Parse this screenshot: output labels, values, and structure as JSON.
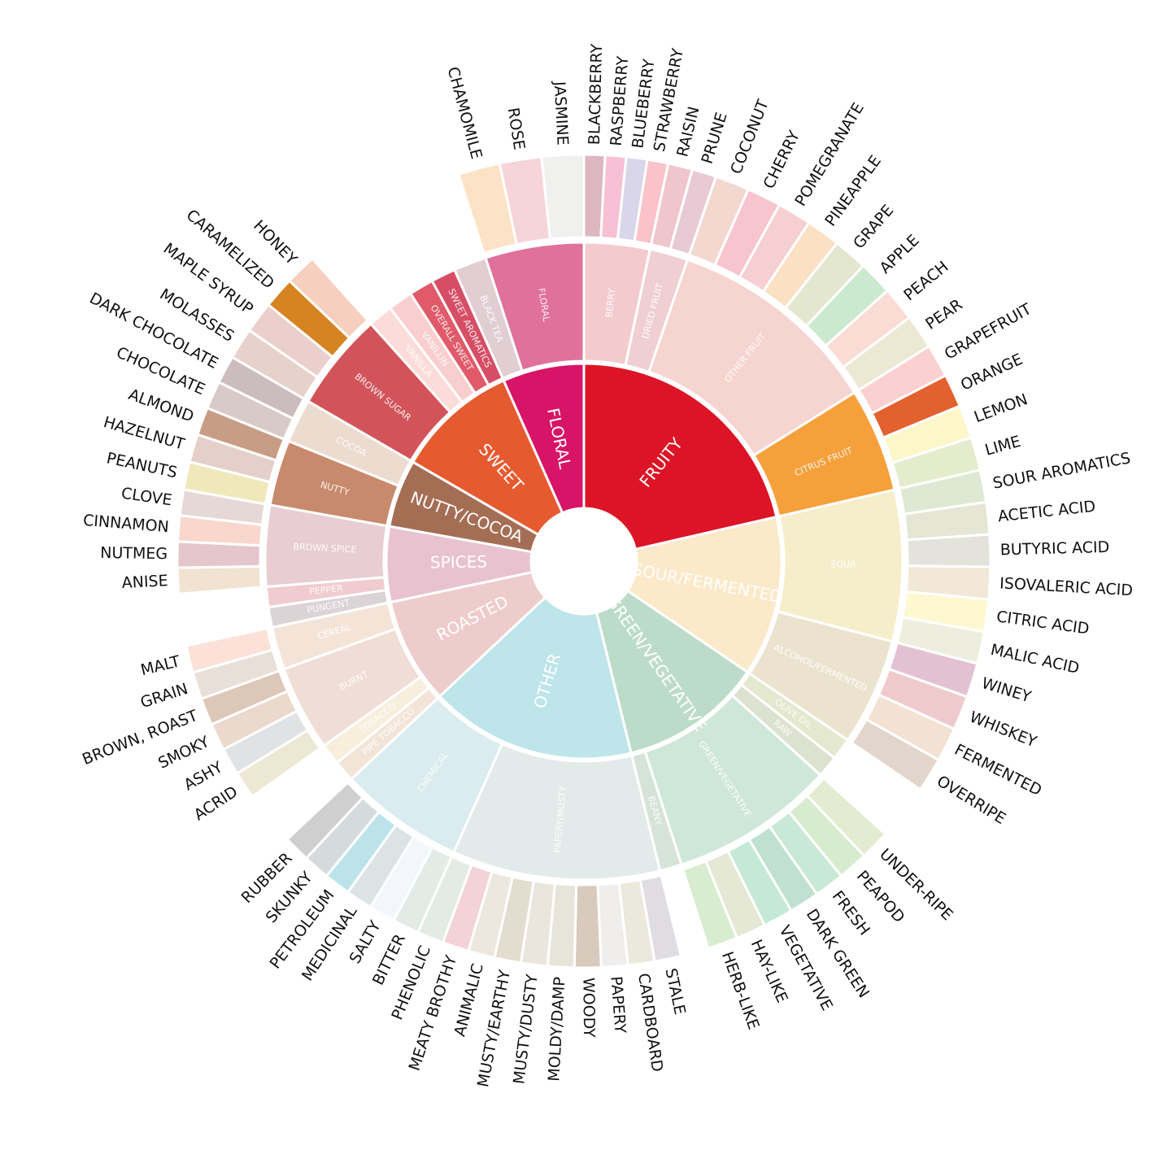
{
  "chart_data": {
    "type": "sunburst",
    "children": [
      {
        "name": "FRUITY",
        "color": "#dc1426",
        "children": [
          {
            "name": "BERRY",
            "color": "#f3cbcf",
            "children": [
              {
                "name": "BLACKBERRY",
                "color": "#dcb6c1",
                "value": 3
              },
              {
                "name": "RASPBERRY",
                "color": "#f7c0d4",
                "value": 3
              },
              {
                "name": "BLUEBERRY",
                "color": "#d8d6e8",
                "value": 3
              },
              {
                "name": "STRAWBERRY",
                "color": "#f9c3c9",
                "value": 3
              }
            ]
          },
          {
            "name": "DRIED FRUIT",
            "color": "#efcfd2",
            "children": [
              {
                "name": "RAISIN",
                "color": "#efc6cb",
                "value": 3.5
              },
              {
                "name": "PRUNE",
                "color": "#e7cad4",
                "value": 3.5
              }
            ]
          },
          {
            "name": "OTHER FRUIT",
            "color": "#f6d4cf",
            "children": [
              {
                "name": "COCONUT",
                "color": "#f3d8d0",
                "value": 4.9
              },
              {
                "name": "CHERRY",
                "color": "#f8c4cd",
                "value": 4.9
              },
              {
                "name": "POMEGRANATE",
                "color": "#f6cfd3",
                "value": 4.9
              },
              {
                "name": "PINEAPPLE",
                "color": "#fbe0c4",
                "value": 4.9
              },
              {
                "name": "GRAPE",
                "color": "#e4e7cf",
                "value": 4.9
              },
              {
                "name": "APPLE",
                "color": "#cbe9cf",
                "value": 4.9
              },
              {
                "name": "PEACH",
                "color": "#fbdcd4",
                "value": 4.9
              },
              {
                "name": "PEAR",
                "color": "#ece8d4",
                "value": 4.9
              }
            ]
          },
          {
            "name": "CITRUS FRUIT",
            "color": "#f5a03a",
            "children": [
              {
                "name": "GRAPEFRUIT",
                "color": "#fbd0d0",
                "value": 4.75
              },
              {
                "name": "ORANGE",
                "color": "#e3602f",
                "value": 4.75
              },
              {
                "name": "LEMON",
                "color": "#fdf6c8",
                "value": 4.75
              },
              {
                "name": "LIME",
                "color": "#e5eccd",
                "value": 4.75
              }
            ]
          }
        ]
      },
      {
        "name": "SOUR/FERMENTED",
        "color": "#fbe9c9",
        "children": [
          {
            "name": "SOUR",
            "color": "#f6edcb",
            "children": [
              {
                "name": "SOUR AROMATICS",
                "color": "#dde9d2",
                "value": 4.6
              },
              {
                "name": "ACETIC ACID",
                "color": "#e5e6d3",
                "value": 4.6
              },
              {
                "name": "BUTYRIC ACID",
                "color": "#e3e3dc",
                "value": 4.6
              },
              {
                "name": "ISOVALERIC ACID",
                "color": "#f1e8d7",
                "value": 4.6
              },
              {
                "name": "CITRIC ACID",
                "color": "#fdf8cf",
                "value": 4.6
              },
              {
                "name": "MALIC ACID",
                "color": "#eeeede",
                "value": 4.6
              }
            ]
          },
          {
            "name": "ALCOHOL/FERMENTED",
            "color": "#ece3cf",
            "children": [
              {
                "name": "WINEY",
                "color": "#e2c2d2",
                "value": 4.9
              },
              {
                "name": "WHISKEY",
                "color": "#efcacd",
                "value": 4.9
              },
              {
                "name": "FERMENTED",
                "color": "#f3e2d3",
                "value": 4.9
              },
              {
                "name": "OVERRIPE",
                "color": "#e2d6cc",
                "value": 4.9
              }
            ]
          }
        ]
      },
      {
        "name": "GREEN/VEGETATIVE",
        "color": "#bcdcc9",
        "children": [
          {
            "name": "OLIVE OIL",
            "color": "#e3e8cf",
            "value": 4
          },
          {
            "name": "RAW",
            "color": "#dde2d0",
            "value": 4
          },
          {
            "name": "GREEN/VEGETATIVE",
            "color": "#cfe7d8",
            "children": [
              {
                "name": "UNDER-RIPE",
                "color": "#e3ecd0",
                "value": 4.3
              },
              {
                "name": "PEAPOD",
                "color": "#d7ebcf",
                "value": 4.3
              },
              {
                "name": "FRESH",
                "color": "#cae8d6",
                "value": 4.3
              },
              {
                "name": "DARK GREEN",
                "color": "#bfe0d2",
                "value": 4.3
              },
              {
                "name": "VEGETATIVE",
                "color": "#c4e9d6",
                "value": 4.3
              },
              {
                "name": "HAY-LIKE",
                "color": "#e4e8d5",
                "value": 4.3
              },
              {
                "name": "HERB-LIKE",
                "color": "#d8ecd0",
                "value": 4.3
              }
            ]
          },
          {
            "name": "BEANY",
            "color": "#d6e3d9",
            "value": 4
          }
        ]
      },
      {
        "name": "OTHER",
        "color": "#bde5ea",
        "children": [
          {
            "name": "PAPERY/MUSTY",
            "color": "#e2ebe9",
            "children": [
              {
                "name": "STALE",
                "color": "#dfdde1",
                "value": 3.8
              },
              {
                "name": "CARDBOARD",
                "color": "#ebe8dc",
                "value": 3.8
              },
              {
                "name": "PAPERY",
                "color": "#efeeec",
                "value": 3.8
              },
              {
                "name": "WOODY",
                "color": "#d8cbbd",
                "value": 3.8
              },
              {
                "name": "MOLDY/DAMP",
                "color": "#e7e5da",
                "value": 3.8
              },
              {
                "name": "MUSTY/DUSTY",
                "color": "#ebe6dd",
                "value": 3.8
              },
              {
                "name": "MUSTY/EARTHY",
                "color": "#e2ddcf",
                "value": 3.8
              },
              {
                "name": "ANIMALIC",
                "color": "#ece7df",
                "value": 3.8
              },
              {
                "name": "MEATY BROTHY",
                "color": "#f3d3d7",
                "value": 3.8
              },
              {
                "name": "PHENOLIC",
                "color": "#e3ebe5",
                "value": 3.8
              }
            ]
          },
          {
            "name": "CHEMICAL",
            "color": "#daecef",
            "children": [
              {
                "name": "BITTER",
                "color": "#e2ebe5",
                "value": 3.8
              },
              {
                "name": "SALTY",
                "color": "#f3f6fb",
                "value": 3.8
              },
              {
                "name": "MEDICINAL",
                "color": "#dce3e5",
                "value": 3.8
              },
              {
                "name": "PETROLEUM",
                "color": "#bde3ea",
                "value": 3.8
              },
              {
                "name": "SKUNKY",
                "color": "#d5dadd",
                "value": 3.8
              },
              {
                "name": "RUBBER",
                "color": "#cfcfcf",
                "value": 3.8
              }
            ]
          }
        ]
      },
      {
        "name": "ROASTED",
        "color": "#eecccc",
        "children": [
          {
            "name": "PIPE TOBACCO",
            "color": "#f2e5d8",
            "value": 3.9
          },
          {
            "name": "TOBACCO",
            "color": "#f7eedc",
            "value": 3.9
          },
          {
            "name": "BURNT",
            "color": "#f0ddd5",
            "children": [
              {
                "name": "ACRID",
                "color": "#ece8d4",
                "value": 3.9
              },
              {
                "name": "ASHY",
                "color": "#e0e2e3",
                "value": 3.9
              },
              {
                "name": "SMOKY",
                "color": "#ead9cc",
                "value": 3.9
              },
              {
                "name": "BROWN, ROAST",
                "color": "#ddc7b9",
                "value": 3.9
              }
            ]
          },
          {
            "name": "CEREAL",
            "color": "#f4e4d8",
            "children": [
              {
                "name": "GRAIN",
                "color": "#e8e0d8",
                "value": 3.9
              },
              {
                "name": "MALT",
                "color": "#fbe1d8",
                "value": 3.9
              }
            ]
          }
        ]
      },
      {
        "name": "SPICES",
        "color": "#e8c3cf",
        "children": [
          {
            "name": "PUNGENT",
            "color": "#dbd3d5",
            "value": 3.7
          },
          {
            "name": "PEPPER",
            "color": "#f0cbd0",
            "value": 3.7
          },
          {
            "name": "BROWN SPICE",
            "color": "#e8cdd3",
            "children": [
              {
                "name": "ANISE",
                "color": "#f1e2d1",
                "value": 3.7
              },
              {
                "name": "NUTMEG",
                "color": "#e5c6cd",
                "value": 3.7
              },
              {
                "name": "CINNAMON",
                "color": "#f9d7cc",
                "value": 3.7
              },
              {
                "name": "CLOVE",
                "color": "#e6d8d6",
                "value": 3.7
              }
            ]
          }
        ]
      },
      {
        "name": "NUTTY/COCOA",
        "color": "#a46e55",
        "children": [
          {
            "name": "NUTTY",
            "color": "#c88a6c",
            "children": [
              {
                "name": "PEANUTS",
                "color": "#f0e8ba",
                "value": 4
              },
              {
                "name": "HAZELNUT",
                "color": "#e5d0c9",
                "value": 4
              },
              {
                "name": "ALMOND",
                "color": "#c89d85",
                "value": 4
              }
            ]
          },
          {
            "name": "COCOA",
            "color": "#ecdcd0",
            "children": [
              {
                "name": "CHOCOLATE",
                "color": "#d8cbc7",
                "value": 4
              },
              {
                "name": "DARK CHOCOLATE",
                "color": "#cbbcbf",
                "value": 4
              }
            ]
          }
        ]
      },
      {
        "name": "SWEET",
        "color": "#e65a30",
        "children": [
          {
            "name": "BROWN SUGAR",
            "color": "#d2545a",
            "children": [
              {
                "name": "MOLASSES",
                "color": "#e6d1cb",
                "value": 4.5
              },
              {
                "name": "MAPLE SYRUP",
                "color": "#ebcfcc",
                "value": 4.5
              },
              {
                "name": "CARAMELIZED",
                "color": "#d68422",
                "value": 4.5
              },
              {
                "name": "HONEY",
                "color": "#f6cfbf",
                "value": 4.5
              }
            ]
          },
          {
            "name": "VANILLA",
            "color": "#fbdcd8",
            "value": 4.5
          },
          {
            "name": "VANILLIN",
            "color": "#f9cece",
            "value": 4.5
          },
          {
            "name": "OVERALL SWEET",
            "color": "#e05a6a",
            "value": 4.5
          },
          {
            "name": "SWEET AROMATICS",
            "color": "#d64e65",
            "value": 4.5
          }
        ]
      },
      {
        "name": "FLORAL",
        "color": "#d81468",
        "children": [
          {
            "name": "BLACK TEA",
            "color": "#e0ced3",
            "value": 6
          },
          {
            "name": "FLORAL",
            "color": "#df719b",
            "children": [
              {
                "name": "CHAMOMILE",
                "color": "#fce2c6",
                "value": 6
              },
              {
                "name": "ROSE",
                "color": "#f6d4da",
                "value": 6
              },
              {
                "name": "JASMINE",
                "color": "#f0f0ef",
                "value": 6
              }
            ]
          }
        ]
      }
    ]
  }
}
